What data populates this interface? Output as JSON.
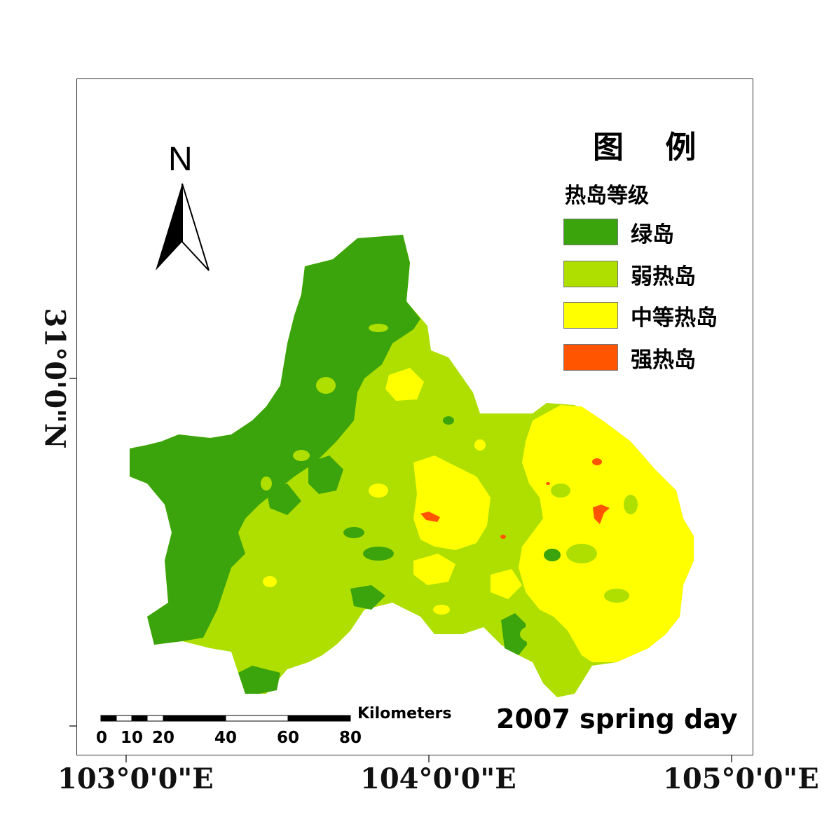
{
  "legend": {
    "title": "图 例",
    "subtitle": "热岛等级",
    "items": [
      {
        "label": "绿岛",
        "color": "#3ba40c"
      },
      {
        "label": "弱热岛",
        "color": "#aedf00"
      },
      {
        "label": "中等热岛",
        "color": "#ffff00"
      },
      {
        "label": "强热岛",
        "color": "#ff5500"
      }
    ]
  },
  "north_arrow": {
    "letter": "N"
  },
  "axes": {
    "longitude_labels": [
      "103°0'0\"E",
      "104°0'0\"E",
      "105°0'0\"E"
    ],
    "latitude_label": "31°0'0\"N"
  },
  "scale_bar": {
    "unit": "Kilometers",
    "ticks": [
      "0",
      "10",
      "20",
      "40",
      "60",
      "80"
    ]
  },
  "caption": "2007 spring day",
  "colors": {
    "green_island": "#3ba40c",
    "weak_heat_island": "#aedf00",
    "moderate_heat_island": "#ffff00",
    "strong_heat_island": "#ff5500",
    "frame": "#333333"
  }
}
